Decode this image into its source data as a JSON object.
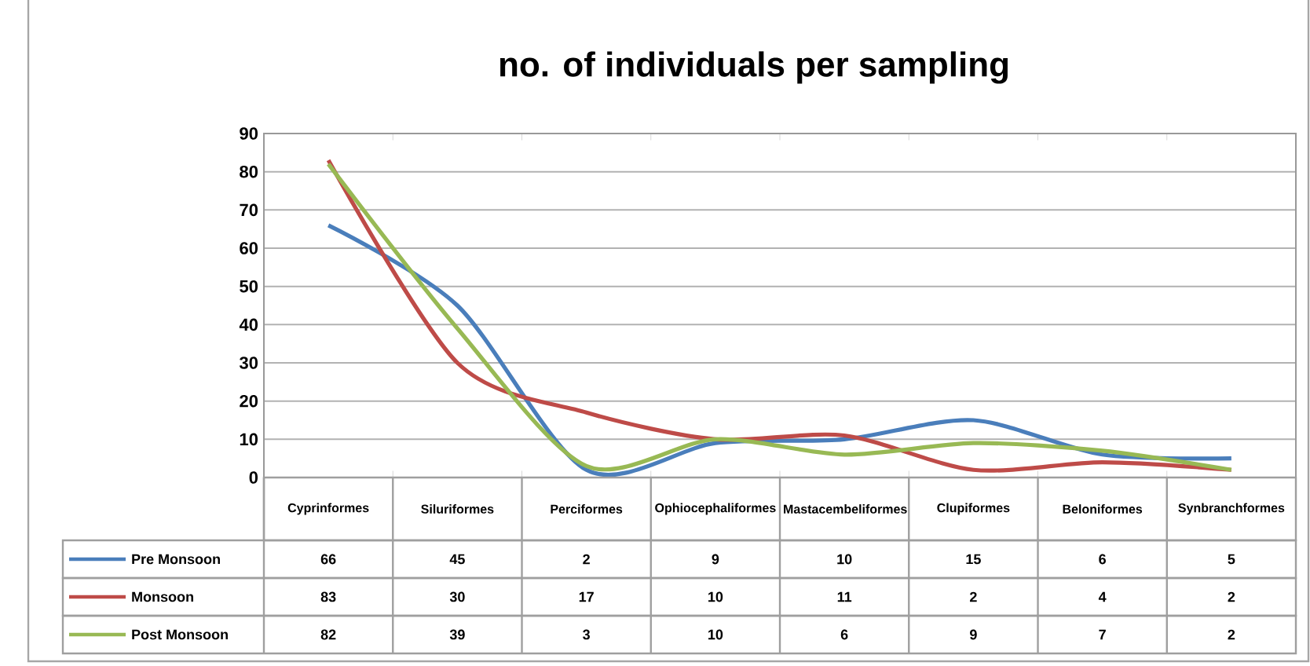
{
  "chart_data": {
    "type": "line",
    "title": "no. of individuals per sampling",
    "categories": [
      "Cyprinformes",
      "Siluriformes",
      "Perciformes",
      "Ophiocephaliformes",
      "Mastacembeliformes",
      "Clupiformes",
      "Beloniformes",
      "Synbranchformes"
    ],
    "series": [
      {
        "name": "Pre Monsoon",
        "color": "#4a7ebb",
        "values": [
          66,
          45,
          2,
          9,
          10,
          15,
          6,
          5
        ]
      },
      {
        "name": "Monsoon",
        "color": "#be4b48",
        "values": [
          83,
          30,
          17,
          10,
          11,
          2,
          4,
          2
        ]
      },
      {
        "name": "Post Monsoon",
        "color": "#98b954",
        "values": [
          82,
          39,
          3,
          10,
          6,
          9,
          7,
          2
        ]
      }
    ],
    "ylim": [
      0,
      90
    ],
    "yticks": [
      0,
      10,
      20,
      30,
      40,
      50,
      60,
      70,
      80,
      90
    ],
    "grid": "y",
    "legend": "bottom",
    "data_labels": true,
    "marker": "none",
    "line_style": "solid"
  }
}
